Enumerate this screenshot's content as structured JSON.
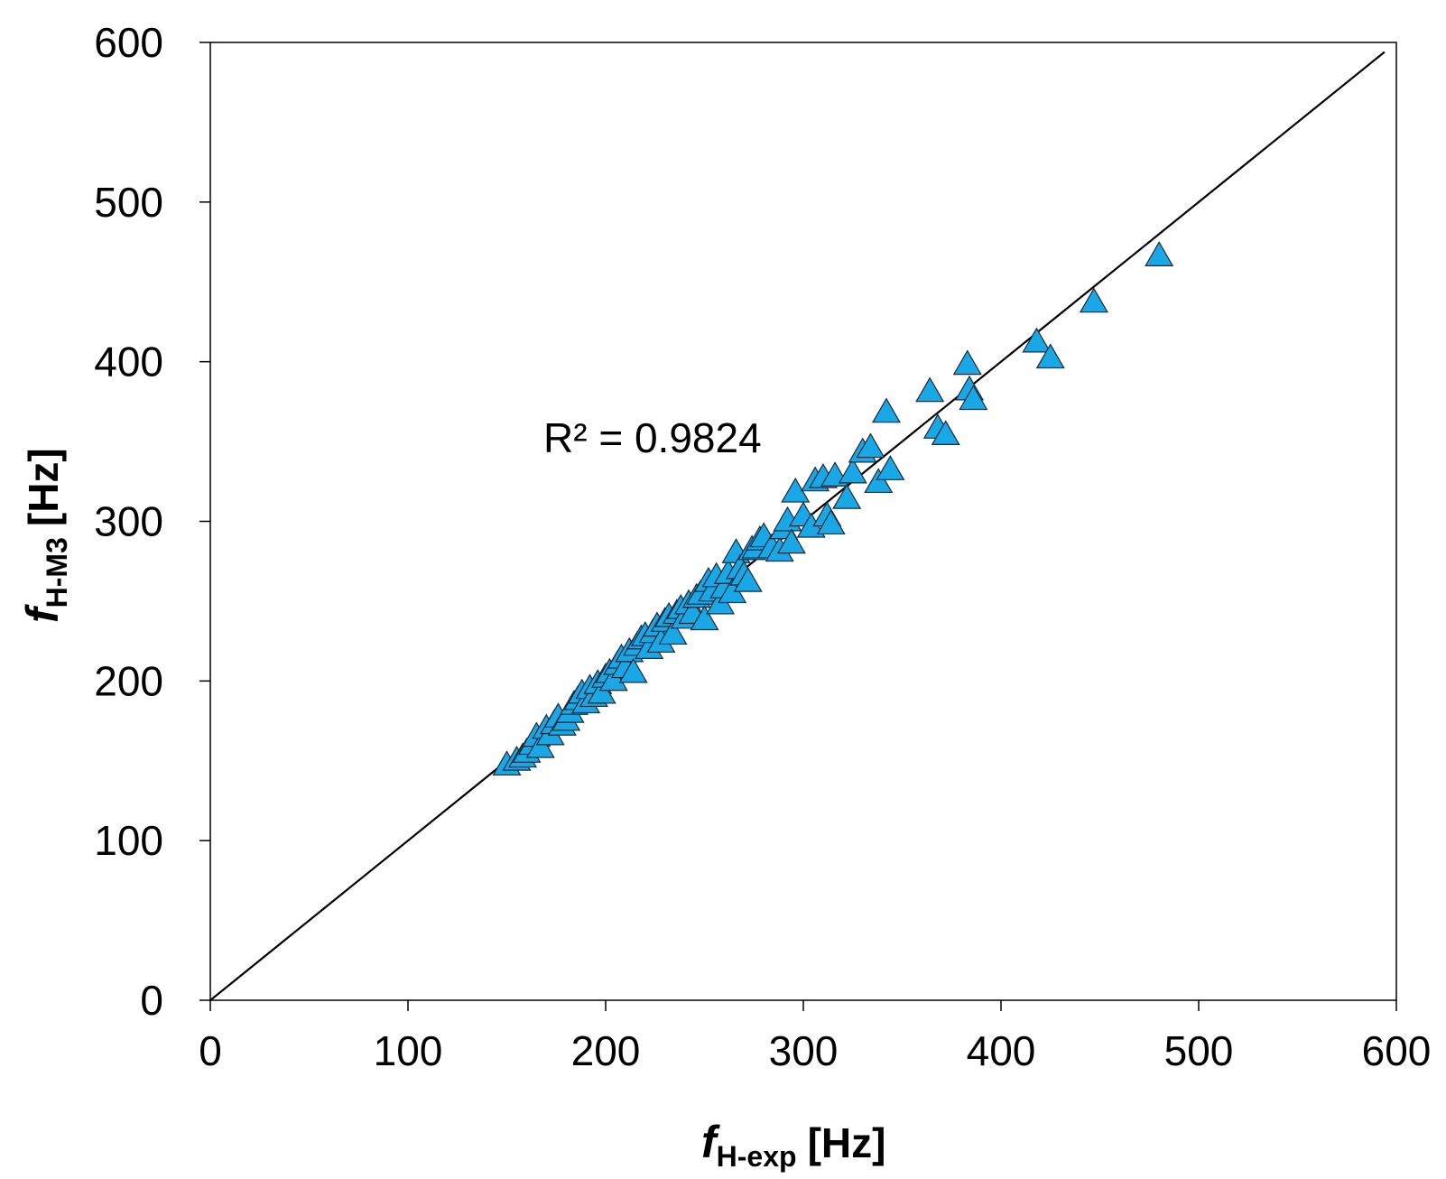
{
  "chart_data": {
    "type": "scatter",
    "title": "",
    "x_axis": {
      "label_main": "f",
      "label_sub": "H-exp",
      "label_unit": "[Hz]",
      "range": [
        0,
        600
      ],
      "ticks": [
        0,
        100,
        200,
        300,
        400,
        500,
        600
      ]
    },
    "y_axis": {
      "label_main": "f",
      "label_sub": "H-M3",
      "label_unit": "[Hz]",
      "range": [
        0,
        600
      ],
      "ticks": [
        0,
        100,
        200,
        300,
        400,
        500,
        600
      ]
    },
    "grid": false,
    "legend": "none",
    "marker": "triangle",
    "marker_color": "#1aa7e6",
    "marker_edge_color": "#1a2a3a",
    "reference_line": {
      "x": [
        0,
        594
      ],
      "y": [
        0,
        594
      ],
      "color": "#000000"
    },
    "annotation": "R² = 0.9824",
    "series": [
      {
        "points": [
          [
            150,
            147
          ],
          [
            155,
            150
          ],
          [
            158,
            152
          ],
          [
            160,
            155
          ],
          [
            163,
            160
          ],
          [
            165,
            165
          ],
          [
            167,
            158
          ],
          [
            170,
            170
          ],
          [
            172,
            166
          ],
          [
            174,
            173
          ],
          [
            176,
            177
          ],
          [
            178,
            172
          ],
          [
            180,
            175
          ],
          [
            182,
            180
          ],
          [
            184,
            185
          ],
          [
            186,
            188
          ],
          [
            188,
            192
          ],
          [
            190,
            186
          ],
          [
            192,
            195
          ],
          [
            194,
            190
          ],
          [
            196,
            198
          ],
          [
            198,
            192
          ],
          [
            200,
            202
          ],
          [
            202,
            205
          ],
          [
            204,
            200
          ],
          [
            206,
            210
          ],
          [
            208,
            214
          ],
          [
            210,
            208
          ],
          [
            212,
            218
          ],
          [
            214,
            205
          ],
          [
            216,
            222
          ],
          [
            218,
            226
          ],
          [
            220,
            228
          ],
          [
            222,
            220
          ],
          [
            224,
            230
          ],
          [
            226,
            234
          ],
          [
            228,
            224
          ],
          [
            230,
            237
          ],
          [
            232,
            240
          ],
          [
            234,
            229
          ],
          [
            236,
            242
          ],
          [
            238,
            245
          ],
          [
            240,
            239
          ],
          [
            242,
            248
          ],
          [
            244,
            242
          ],
          [
            246,
            252
          ],
          [
            248,
            254
          ],
          [
            250,
            238
          ],
          [
            252,
            262
          ],
          [
            254,
            256
          ],
          [
            256,
            265
          ],
          [
            258,
            248
          ],
          [
            260,
            258
          ],
          [
            262,
            267
          ],
          [
            264,
            255
          ],
          [
            266,
            280
          ],
          [
            268,
            270
          ],
          [
            270,
            266
          ],
          [
            272,
            262
          ],
          [
            274,
            282
          ],
          [
            276,
            283
          ],
          [
            278,
            288
          ],
          [
            280,
            290
          ],
          [
            284,
            283
          ],
          [
            288,
            281
          ],
          [
            290,
            295
          ],
          [
            292,
            300
          ],
          [
            294,
            286
          ],
          [
            296,
            318
          ],
          [
            300,
            303
          ],
          [
            304,
            296
          ],
          [
            306,
            325
          ],
          [
            310,
            327
          ],
          [
            312,
            303
          ],
          [
            314,
            298
          ],
          [
            316,
            328
          ],
          [
            322,
            314
          ],
          [
            325,
            330
          ],
          [
            330,
            343
          ],
          [
            334,
            346
          ],
          [
            338,
            324
          ],
          [
            342,
            368
          ],
          [
            344,
            332
          ],
          [
            364,
            381
          ],
          [
            368,
            358
          ],
          [
            372,
            354
          ],
          [
            383,
            398
          ],
          [
            384,
            382
          ],
          [
            386,
            376
          ],
          [
            418,
            412
          ],
          [
            425,
            402
          ],
          [
            447,
            437
          ],
          [
            480,
            466
          ]
        ]
      }
    ]
  }
}
